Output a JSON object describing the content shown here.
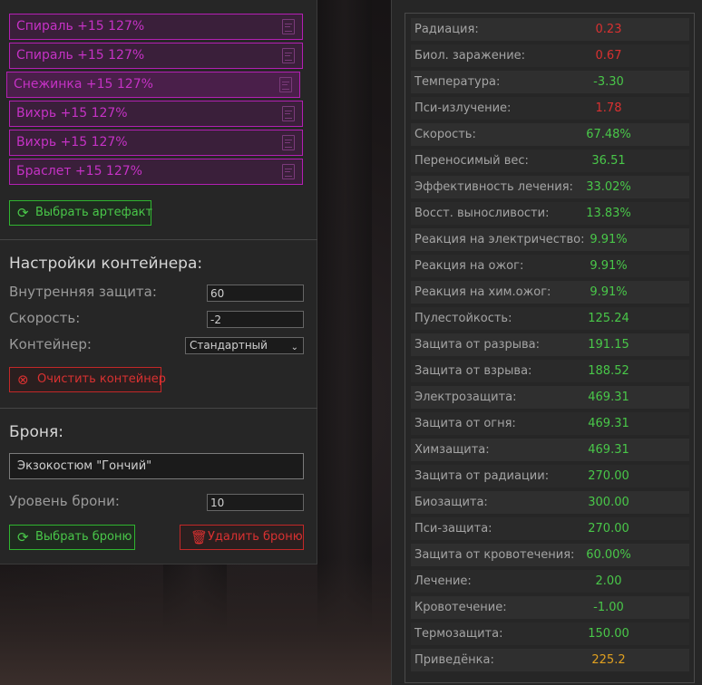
{
  "colors": {
    "artifact": "#c532c5",
    "green": "#49c749",
    "red": "#d93131",
    "orange": "#e0a020"
  },
  "artifacts": [
    {
      "label": "Спираль +15 127%",
      "icon": "document-icon"
    },
    {
      "label": "Спираль +15 127%",
      "icon": "document-icon"
    },
    {
      "label": "Снежинка +15 127%",
      "icon": "document-icon"
    },
    {
      "label": "Вихрь +15 127%",
      "icon": "document-icon"
    },
    {
      "label": "Вихрь +15 127%",
      "icon": "document-icon"
    },
    {
      "label": "Браслет +15 127%",
      "icon": "document-icon"
    }
  ],
  "select_artifact_label": "Выбрать артефакт",
  "container": {
    "title": "Настройки контейнера:",
    "inner_protection_label": "Внутренняя защита:",
    "inner_protection_value": "60",
    "speed_label": "Скорость:",
    "speed_value": "-2",
    "container_label": "Контейнер:",
    "container_value": "Стандартный",
    "clear_label": "Очистить контейнер"
  },
  "armor": {
    "title": "Броня:",
    "name": "Экзокостюм \"Гончий\"",
    "level_label": "Уровень брони:",
    "level_value": "10",
    "select_label": "Выбрать броню",
    "delete_label": "Удалить броню"
  },
  "stats": [
    {
      "name": "Радиация:",
      "value": "0.23",
      "color": "red"
    },
    {
      "name": "Биол. заражение:",
      "value": "0.67",
      "color": "red"
    },
    {
      "name": "Температура:",
      "value": "-3.30",
      "color": "green"
    },
    {
      "name": "Пси-излучение:",
      "value": "1.78",
      "color": "red"
    },
    {
      "name": "Скорость:",
      "value": "67.48%",
      "color": "green"
    },
    {
      "name": "Переносимый вес:",
      "value": "36.51",
      "color": "green"
    },
    {
      "name": "Эффективность лечения:",
      "value": "33.02%",
      "color": "green"
    },
    {
      "name": "Восст. выносливости:",
      "value": "13.83%",
      "color": "green"
    },
    {
      "name": "Реакция на электричество:",
      "value": "9.91%",
      "color": "green"
    },
    {
      "name": "Реакция на ожог:",
      "value": "9.91%",
      "color": "green"
    },
    {
      "name": "Реакция на хим.ожог:",
      "value": "9.91%",
      "color": "green"
    },
    {
      "name": "Пулестойкость:",
      "value": "125.24",
      "color": "green"
    },
    {
      "name": "Защита от разрыва:",
      "value": "191.15",
      "color": "green"
    },
    {
      "name": "Защита от взрыва:",
      "value": "188.52",
      "color": "green"
    },
    {
      "name": "Электрозащита:",
      "value": "469.31",
      "color": "green"
    },
    {
      "name": "Защита от огня:",
      "value": "469.31",
      "color": "green"
    },
    {
      "name": "Химзащита:",
      "value": "469.31",
      "color": "green"
    },
    {
      "name": "Защита от радиации:",
      "value": "270.00",
      "color": "green"
    },
    {
      "name": "Биозащита:",
      "value": "300.00",
      "color": "green"
    },
    {
      "name": "Пси-защита:",
      "value": "270.00",
      "color": "green"
    },
    {
      "name": "Защита от кровотечения:",
      "value": "60.00%",
      "color": "green"
    },
    {
      "name": "Лечение:",
      "value": "2.00",
      "color": "green"
    },
    {
      "name": "Кровотечение:",
      "value": "-1.00",
      "color": "green"
    },
    {
      "name": "Термозащита:",
      "value": "150.00",
      "color": "green"
    },
    {
      "name": "Приведёнка:",
      "value": "225.2",
      "color": "orange"
    }
  ]
}
